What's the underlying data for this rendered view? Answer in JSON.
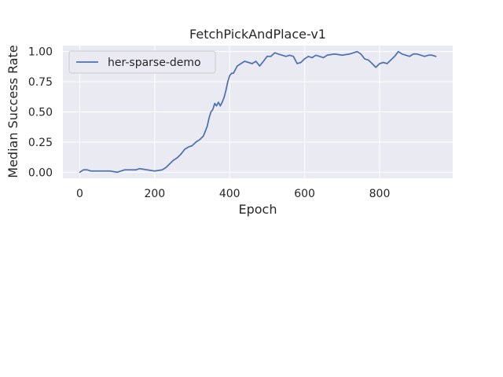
{
  "chart_data": {
    "type": "line",
    "title": "FetchPickAndPlace-v1",
    "xlabel": "Epoch",
    "ylabel": "Median Success Rate",
    "xlim": [
      -45,
      995
    ],
    "ylim": [
      -0.05,
      1.05
    ],
    "xticks": [
      0,
      200,
      400,
      600,
      800
    ],
    "yticks": [
      0.0,
      0.25,
      0.5,
      0.75,
      1.0
    ],
    "xtick_labels": [
      "0",
      "200",
      "400",
      "600",
      "800"
    ],
    "ytick_labels": [
      "0.00",
      "0.25",
      "0.50",
      "0.75",
      "1.00"
    ],
    "grid": true,
    "legend": {
      "position": "top-left"
    },
    "colors": {
      "background": "#EAEAF2",
      "grid": "#FFFFFF",
      "series": "#4C72B0"
    },
    "series": [
      {
        "name": "her-sparse-demo",
        "x": [
          0,
          10,
          20,
          30,
          40,
          60,
          80,
          100,
          120,
          140,
          150,
          160,
          180,
          200,
          220,
          230,
          240,
          250,
          260,
          270,
          280,
          290,
          300,
          310,
          320,
          330,
          340,
          345,
          350,
          355,
          360,
          365,
          370,
          375,
          380,
          385,
          390,
          395,
          400,
          405,
          410,
          420,
          430,
          440,
          450,
          460,
          470,
          480,
          490,
          500,
          510,
          520,
          530,
          540,
          550,
          560,
          570,
          580,
          590,
          600,
          610,
          620,
          630,
          640,
          650,
          660,
          680,
          700,
          720,
          740,
          750,
          760,
          770,
          780,
          790,
          800,
          810,
          820,
          830,
          840,
          850,
          860,
          870,
          880,
          890,
          900,
          910,
          920,
          930,
          940,
          950
        ],
        "y": [
          0.0,
          0.02,
          0.02,
          0.01,
          0.01,
          0.01,
          0.01,
          0.0,
          0.02,
          0.02,
          0.02,
          0.03,
          0.02,
          0.01,
          0.02,
          0.04,
          0.07,
          0.1,
          0.12,
          0.15,
          0.19,
          0.21,
          0.22,
          0.25,
          0.27,
          0.3,
          0.38,
          0.45,
          0.5,
          0.52,
          0.57,
          0.55,
          0.58,
          0.55,
          0.58,
          0.62,
          0.68,
          0.75,
          0.8,
          0.82,
          0.82,
          0.88,
          0.9,
          0.92,
          0.91,
          0.9,
          0.92,
          0.88,
          0.92,
          0.96,
          0.96,
          0.99,
          0.98,
          0.97,
          0.96,
          0.97,
          0.96,
          0.9,
          0.91,
          0.94,
          0.96,
          0.95,
          0.97,
          0.96,
          0.95,
          0.97,
          0.98,
          0.97,
          0.98,
          1.0,
          0.98,
          0.94,
          0.93,
          0.9,
          0.87,
          0.9,
          0.91,
          0.9,
          0.93,
          0.96,
          1.0,
          0.98,
          0.97,
          0.96,
          0.98,
          0.98,
          0.97,
          0.96,
          0.97,
          0.97,
          0.96
        ]
      }
    ]
  }
}
